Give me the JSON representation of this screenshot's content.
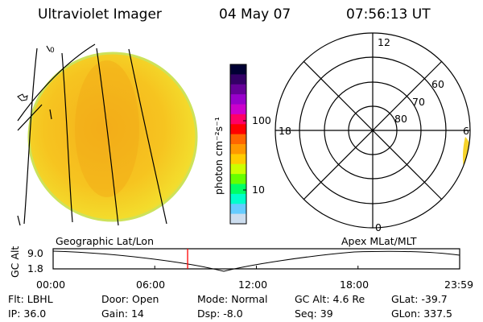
{
  "header": {
    "instrument": "Ultraviolet Imager",
    "date": "04 May 07",
    "time": "07:56:13 UT"
  },
  "left_panel": {
    "caption": "Geographic Lat/Lon",
    "corner_glyph": "0"
  },
  "colorbar": {
    "unit_label": "photon cm⁻²s⁻¹",
    "tick_labels": [
      "100",
      "10"
    ],
    "colors": [
      "#000033",
      "#330066",
      "#660099",
      "#9900cc",
      "#cc00cc",
      "#ff0066",
      "#ff0000",
      "#ff6600",
      "#ff9900",
      "#ffcc00",
      "#ccff00",
      "#66ff00",
      "#00ff66",
      "#00ffcc",
      "#66ccff",
      "#ccddee"
    ]
  },
  "right_panel": {
    "caption": "Apex MLat/MLT",
    "mlt_labels": [
      "12",
      "18",
      "6",
      "0"
    ],
    "mlat_labels": [
      "60",
      "70",
      "80"
    ]
  },
  "altitude_plot": {
    "ylabel": "GC Alt",
    "y_ticks": [
      "9.0",
      "1.8"
    ],
    "x_ticks": [
      "00:00",
      "06:00",
      "12:00",
      "18:00",
      "23:59"
    ],
    "marker_time_hours": 7.94,
    "marker_color": "#ff0000"
  },
  "info": {
    "row1": [
      {
        "label": "Flt:",
        "value": "LBHL"
      },
      {
        "label": "Door:",
        "value": "Open"
      },
      {
        "label": "Mode:",
        "value": "Normal"
      },
      {
        "label": "GC Alt:",
        "value": "4.6 Re"
      },
      {
        "label": "GLat:",
        "value": "-39.7"
      }
    ],
    "row2": [
      {
        "label": "IP:",
        "value": "36.0"
      },
      {
        "label": "Gain:",
        "value": "14"
      },
      {
        "label": "Dsp:",
        "value": "-8.0"
      },
      {
        "label": "Seq:",
        "value": "39"
      },
      {
        "label": "GLon:",
        "value": "337.5"
      }
    ]
  },
  "colors": {
    "disk_fill": "#f6c420",
    "disk_edge": "#dfe24a",
    "aurora_edge": "#f2ee3a"
  }
}
